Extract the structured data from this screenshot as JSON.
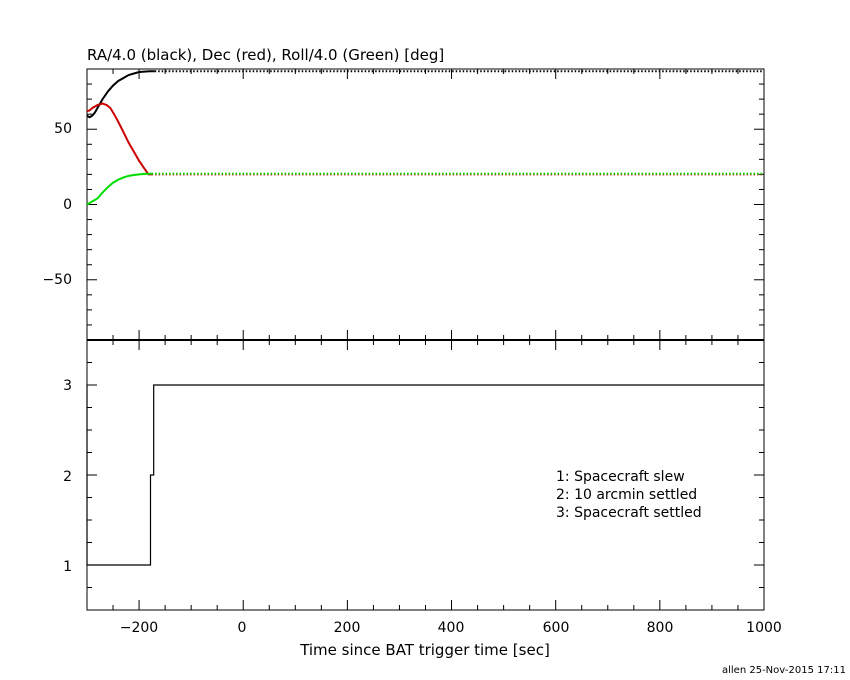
{
  "chart_data": [
    {
      "type": "line",
      "title": "RA/4.0 (black), Dec (red), Roll/4.0 (Green) [deg]",
      "xlim": [
        -300,
        1000
      ],
      "ylim": [
        -90,
        90
      ],
      "yticks": [
        -50,
        0,
        50
      ],
      "series": [
        {
          "color": "#000000",
          "x": [
            -300,
            -295,
            -290,
            -285,
            -280,
            -270,
            -260,
            -250,
            -240,
            -230,
            -220,
            -210,
            -200,
            -190,
            -180,
            -170,
            -160,
            1000
          ],
          "values": [
            59,
            58,
            59,
            61,
            64,
            70,
            75,
            79,
            82,
            84,
            86,
            87,
            88,
            88.3,
            88.5,
            88.5,
            88.5,
            88.5
          ],
          "dotted_from": -170
        },
        {
          "color": "#cc0000",
          "x": [
            -300,
            -295,
            -290,
            -280,
            -270,
            -262,
            -255,
            -248,
            -240,
            -230,
            -220,
            -210,
            -200,
            -190,
            -182,
            -176,
            -170,
            1000
          ],
          "values": [
            62,
            62.5,
            64,
            66,
            67,
            66,
            64,
            60,
            55,
            48,
            41,
            35,
            29,
            24,
            20,
            20,
            20,
            20
          ],
          "dotted_from": -176
        },
        {
          "color": "#00dd00",
          "x": [
            -300,
            -295,
            -290,
            -280,
            -270,
            -260,
            -250,
            -240,
            -230,
            -220,
            -210,
            -200,
            -190,
            -180,
            -176,
            1000
          ],
          "values": [
            0,
            1,
            2,
            4,
            8,
            11.5,
            14.5,
            16.5,
            18,
            19,
            19.6,
            20,
            20.3,
            20.4,
            20.5,
            20.5
          ],
          "dotted_from": -176
        }
      ]
    },
    {
      "type": "line",
      "xlabel": "Time since BAT trigger time [sec]",
      "xlim": [
        -300,
        1000
      ],
      "ylim": [
        0.5,
        3.5
      ],
      "xticks": [
        -200,
        0,
        200,
        400,
        600,
        800,
        1000
      ],
      "xtick_labels": [
        "−200",
        "0",
        "200",
        "400",
        "600",
        "800",
        "1000"
      ],
      "yticks": [
        1,
        2,
        3
      ],
      "series": [
        {
          "color": "#000000",
          "step": true,
          "x": [
            -300,
            -300,
            -178,
            -178,
            -172,
            -172,
            1000
          ],
          "values": [
            3,
            1,
            1,
            2,
            2,
            3,
            3
          ]
        }
      ],
      "annotations": [
        "1: Spacecraft slew",
        "2: 10 arcmin settled",
        "3: Spacecraft settled"
      ]
    }
  ],
  "ytick_labels_top": [
    "−50",
    "0",
    "50"
  ],
  "footer": "allen 25-Nov-2015 17:11"
}
